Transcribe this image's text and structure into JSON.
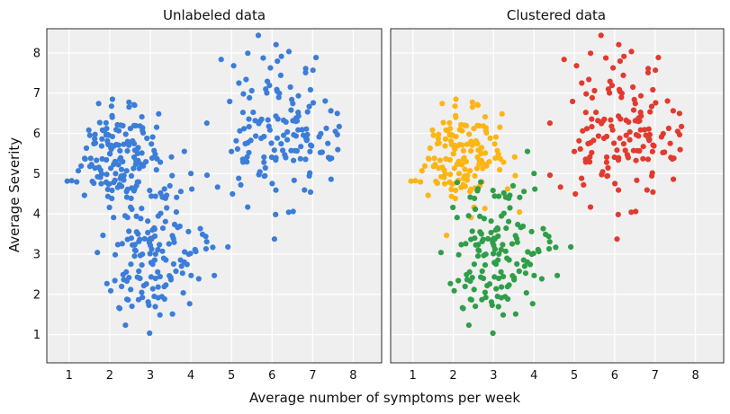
{
  "figure": {
    "background": "#ffffff"
  },
  "chart_data": {
    "type": "scatter",
    "xlabel": "Average number of symptoms per week",
    "ylabel": "Average Severity",
    "xlim": [
      0.45,
      8.7
    ],
    "ylim": [
      0.3,
      8.6
    ],
    "xticks": [
      1,
      2,
      3,
      4,
      5,
      6,
      7,
      8
    ],
    "yticks": [
      1,
      2,
      3,
      4,
      5,
      6,
      7,
      8
    ],
    "grid": true,
    "axes_background": "#efefef",
    "grid_color": "#ffffff",
    "frame_color": "#2b2b2b",
    "marker": {
      "size": 3.1,
      "shape": "circle"
    },
    "seed": 42,
    "panels": [
      {
        "title": "Unlabeled data",
        "color_mode": "single",
        "point_color": "#3b7dd8",
        "show_y_tick_labels": true
      },
      {
        "title": "Clustered data",
        "color_mode": "by_cluster",
        "show_y_tick_labels": false
      }
    ],
    "clusters": [
      {
        "name": "cluster-yellow",
        "color": "#fcb514",
        "center": [
          2.2,
          5.5
        ],
        "std": [
          0.55,
          0.62
        ],
        "n": 150
      },
      {
        "name": "cluster-green",
        "color": "#2f9e48",
        "center": [
          3.1,
          3.1
        ],
        "std": [
          0.65,
          0.85
        ],
        "n": 150
      },
      {
        "name": "cluster-red",
        "color": "#e23a2e",
        "center": [
          6.1,
          6.0
        ],
        "std": [
          0.8,
          0.9
        ],
        "n": 150
      }
    ]
  }
}
